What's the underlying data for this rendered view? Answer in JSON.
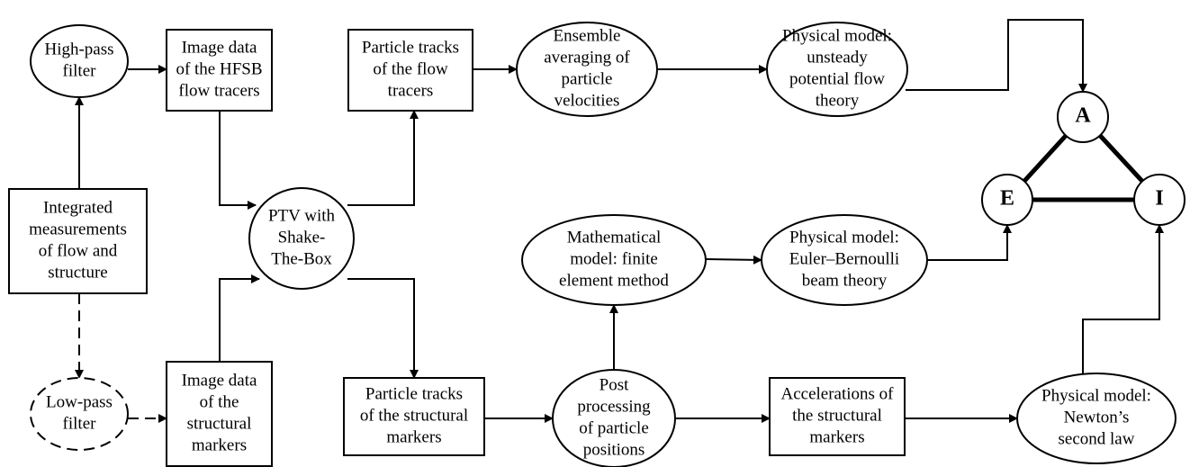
{
  "nodes": [
    {
      "label": [
        "High-pass",
        "filter"
      ]
    },
    {
      "label": [
        "Image data",
        "of the HFSB",
        "flow tracers"
      ]
    },
    {
      "label": [
        "Integrated",
        "measurements",
        "of flow and",
        "structure"
      ]
    },
    {
      "label": [
        "Low-pass",
        "filter"
      ]
    },
    {
      "label": [
        "Image data",
        "of the",
        "structural",
        "markers"
      ]
    },
    {
      "label": [
        "PTV with",
        "Shake-",
        "The-Box"
      ]
    },
    {
      "label": [
        "Particle tracks",
        "of the flow",
        "tracers"
      ]
    },
    {
      "label": [
        "Ensemble",
        "averaging of",
        "particle",
        "velocities"
      ]
    },
    {
      "label": [
        "Physical model:",
        "unsteady",
        "potential flow",
        "theory"
      ]
    },
    {
      "label": [
        "Particle tracks",
        "of the structural",
        "markers"
      ]
    },
    {
      "label": [
        "Post",
        "processing",
        "of particle",
        "positions"
      ]
    },
    {
      "label": [
        "Mathematical",
        "model: finite",
        "element method"
      ]
    },
    {
      "label": [
        "Physical model:",
        "Euler–Bernoulli",
        "beam theory"
      ]
    },
    {
      "label": [
        "Accelerations of",
        "the structural",
        "markers"
      ]
    },
    {
      "label": [
        "Physical model:",
        "Newton’s",
        "second law"
      ]
    },
    {
      "label": [
        "A"
      ]
    },
    {
      "label": [
        "E"
      ]
    },
    {
      "label": [
        "I"
      ]
    }
  ]
}
